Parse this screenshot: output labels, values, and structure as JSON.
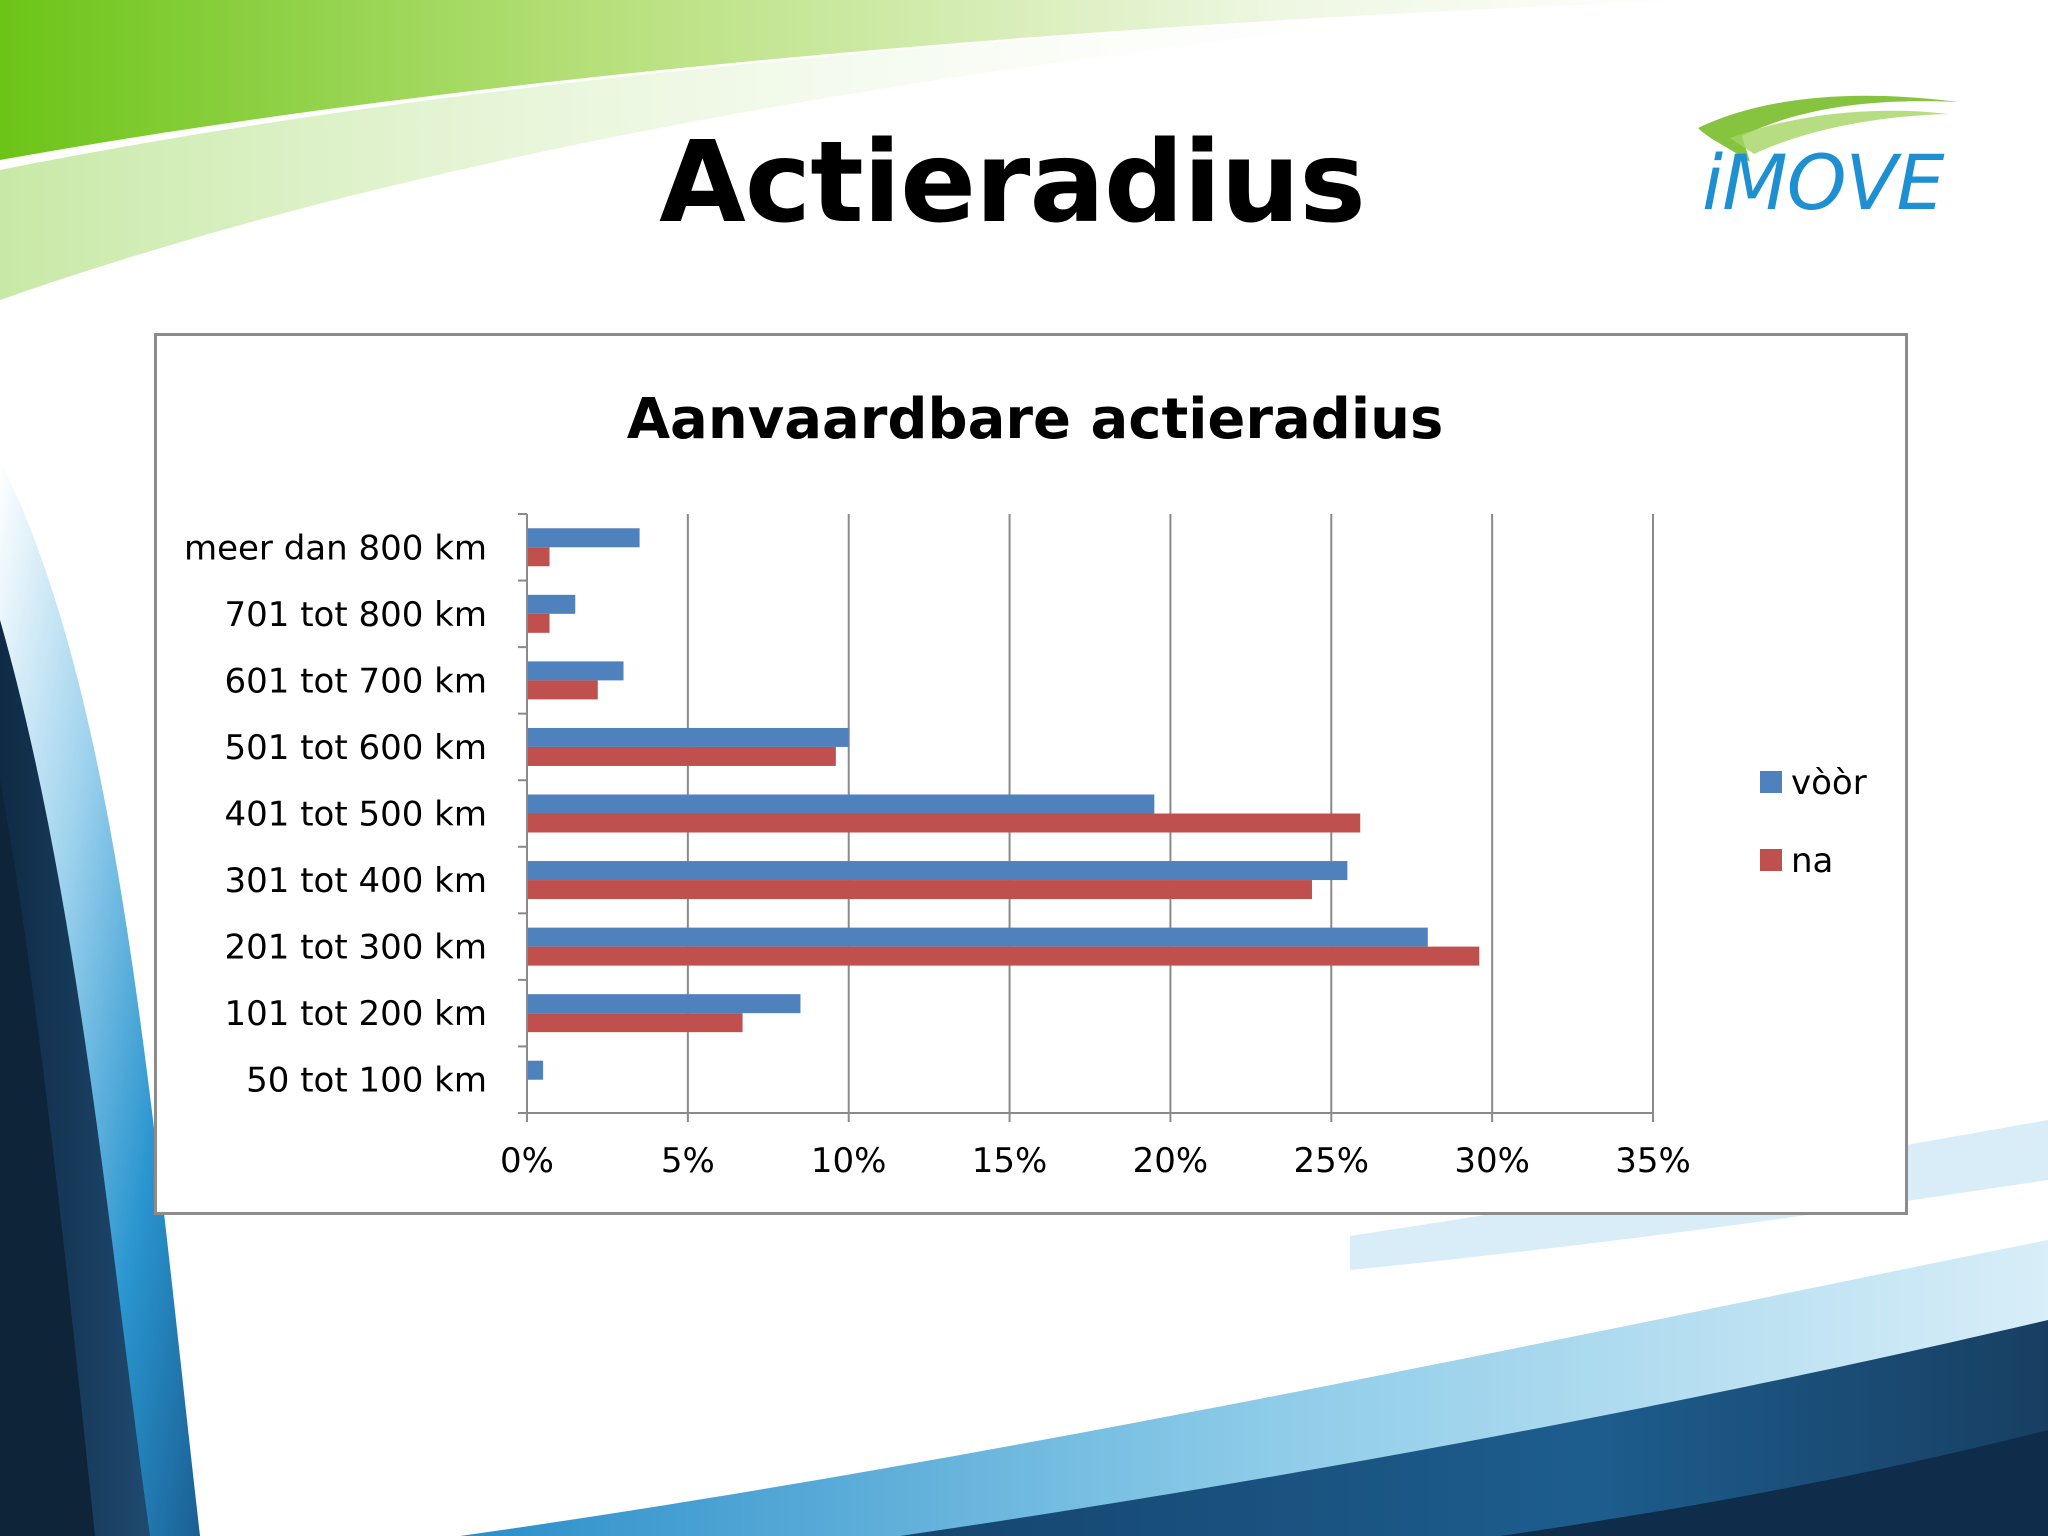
{
  "slide": {
    "title": "Actieradius",
    "logo_text": "iMOVE"
  },
  "colors": {
    "series_voor": "#4f81bd",
    "series_na": "#c0504d",
    "green": "#76c41f",
    "blue": "#1e8fd0",
    "navy": "#17324f"
  },
  "chart_data": {
    "type": "bar",
    "orientation": "horizontal",
    "title": "Aanvaardbare actieradius",
    "categories": [
      "meer dan 800 km",
      "701 tot 800 km",
      "601 tot 700 km",
      "501 tot 600 km",
      "401 tot 500 km",
      "301 tot 400 km",
      "201 tot 300 km",
      "101 tot 200 km",
      "50 tot 100 km"
    ],
    "series": [
      {
        "name": "vòòr",
        "values": [
          3.5,
          1.5,
          3.0,
          10.0,
          19.5,
          25.5,
          28.0,
          8.5,
          0.5
        ]
      },
      {
        "name": "na",
        "values": [
          0.7,
          0.7,
          2.2,
          9.6,
          25.9,
          24.4,
          29.6,
          6.7,
          0.0
        ]
      }
    ],
    "xlim": [
      0,
      35
    ],
    "xticks": [
      "0%",
      "5%",
      "10%",
      "15%",
      "20%",
      "25%",
      "30%",
      "35%"
    ],
    "grid": "vertical",
    "legend": "right"
  }
}
